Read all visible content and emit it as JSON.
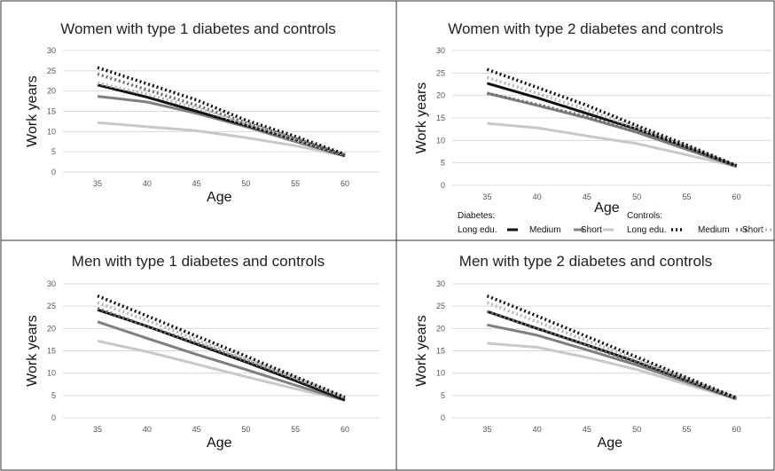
{
  "chart_data": [
    {
      "type": "line",
      "title": "Women with type 1 diabetes and controls",
      "xlabel": "Age",
      "ylabel": "Work years",
      "x": [
        35,
        40,
        45,
        50,
        55,
        60
      ],
      "ylim": [
        0,
        30
      ],
      "yticks": [
        0,
        5,
        10,
        15,
        20,
        25,
        30
      ],
      "xticks": [
        35,
        40,
        45,
        50,
        55,
        60
      ],
      "grid": "horizontal",
      "series": [
        {
          "group": "Diabetes",
          "edu": "Long edu.",
          "values": [
            21.5,
            18.5,
            15.0,
            11.5,
            8.0,
            4.0
          ]
        },
        {
          "group": "Diabetes",
          "edu": "Medium",
          "values": [
            18.7,
            17.3,
            14.5,
            11.2,
            7.5,
            4.0
          ]
        },
        {
          "group": "Diabetes",
          "edu": "Short",
          "values": [
            12.2,
            11.2,
            10.2,
            8.5,
            6.5,
            4.0
          ]
        },
        {
          "group": "Controls",
          "edu": "Long edu.",
          "values": [
            25.8,
            21.8,
            17.8,
            12.8,
            8.8,
            4.4
          ]
        },
        {
          "group": "Controls",
          "edu": "Medium",
          "values": [
            24.2,
            20.3,
            16.5,
            12.2,
            8.3,
            4.2
          ]
        },
        {
          "group": "Controls",
          "edu": "Short",
          "values": [
            22.0,
            19.2,
            15.8,
            11.8,
            8.0,
            4.2
          ]
        }
      ]
    },
    {
      "type": "line",
      "title": "Women with type 2 diabetes and controls",
      "xlabel": "Age",
      "ylabel": "Work years",
      "x": [
        35,
        40,
        45,
        50,
        55,
        60
      ],
      "ylim": [
        0,
        30
      ],
      "yticks": [
        0,
        5,
        10,
        15,
        20,
        25,
        30
      ],
      "xticks": [
        35,
        40,
        45,
        50,
        55,
        60
      ],
      "grid": "horizontal",
      "series": [
        {
          "group": "Diabetes",
          "edu": "Long edu.",
          "values": [
            22.7,
            19.5,
            16.0,
            12.5,
            8.5,
            4.3
          ]
        },
        {
          "group": "Diabetes",
          "edu": "Medium",
          "values": [
            20.5,
            17.8,
            15.0,
            11.8,
            8.0,
            4.2
          ]
        },
        {
          "group": "Diabetes",
          "edu": "Short",
          "values": [
            13.8,
            12.8,
            11.0,
            9.3,
            6.8,
            4.2
          ]
        },
        {
          "group": "Controls",
          "edu": "Long edu.",
          "values": [
            25.8,
            21.8,
            17.8,
            13.3,
            9.0,
            4.4
          ]
        },
        {
          "group": "Controls",
          "edu": "Medium",
          "values": [
            20.5,
            18.0,
            15.3,
            12.0,
            8.2,
            4.3
          ]
        },
        {
          "group": "Controls",
          "edu": "Short",
          "values": [
            24.0,
            20.5,
            16.8,
            12.8,
            8.8,
            4.4
          ]
        }
      ],
      "legend": {
        "placement": "bottom",
        "diabetes_title": "Diabetes:",
        "controls_title": "Controls:",
        "diabetes_items": [
          "Long edu.",
          "Medium",
          "Short"
        ],
        "controls_items": [
          "Long edu.",
          "Medium",
          "Short"
        ]
      }
    },
    {
      "type": "line",
      "title": "Men with type 1 diabetes and controls",
      "xlabel": "Age",
      "ylabel": "Work years",
      "x": [
        35,
        40,
        45,
        50,
        55,
        60
      ],
      "ylim": [
        0,
        30
      ],
      "yticks": [
        0,
        5,
        10,
        15,
        20,
        25,
        30
      ],
      "xticks": [
        35,
        40,
        45,
        50,
        55,
        60
      ],
      "grid": "horizontal",
      "series": [
        {
          "group": "Diabetes",
          "edu": "Long edu.",
          "values": [
            24.2,
            20.5,
            16.5,
            12.5,
            8.3,
            4.0
          ]
        },
        {
          "group": "Diabetes",
          "edu": "Medium",
          "values": [
            21.5,
            17.8,
            14.2,
            10.8,
            7.3,
            3.9
          ]
        },
        {
          "group": "Diabetes",
          "edu": "Short",
          "values": [
            17.2,
            14.8,
            12.0,
            9.2,
            6.5,
            4.0
          ]
        },
        {
          "group": "Controls",
          "edu": "Long edu.",
          "values": [
            27.3,
            22.8,
            18.3,
            13.8,
            9.2,
            4.6
          ]
        },
        {
          "group": "Controls",
          "edu": "Medium",
          "values": [
            24.5,
            20.5,
            16.8,
            12.8,
            8.7,
            4.5
          ]
        },
        {
          "group": "Controls",
          "edu": "Short",
          "values": [
            25.8,
            21.8,
            17.5,
            13.2,
            9.0,
            4.5
          ]
        }
      ]
    },
    {
      "type": "line",
      "title": "Men with type 2 diabetes and controls",
      "xlabel": "Age",
      "ylabel": "Work years",
      "x": [
        35,
        40,
        45,
        50,
        55,
        60
      ],
      "ylim": [
        0,
        30
      ],
      "yticks": [
        0,
        5,
        10,
        15,
        20,
        25,
        30
      ],
      "xticks": [
        35,
        40,
        45,
        50,
        55,
        60
      ],
      "grid": "horizontal",
      "series": [
        {
          "group": "Diabetes",
          "edu": "Long edu.",
          "values": [
            23.8,
            20.0,
            16.3,
            12.5,
            8.4,
            4.3
          ]
        },
        {
          "group": "Diabetes",
          "edu": "Medium",
          "values": [
            20.8,
            18.5,
            15.2,
            11.8,
            8.0,
            4.2
          ]
        },
        {
          "group": "Diabetes",
          "edu": "Short",
          "values": [
            16.7,
            15.8,
            13.5,
            10.8,
            7.5,
            4.2
          ]
        },
        {
          "group": "Controls",
          "edu": "Long edu.",
          "values": [
            27.3,
            22.8,
            18.2,
            13.6,
            9.0,
            4.5
          ]
        },
        {
          "group": "Controls",
          "edu": "Medium",
          "values": [
            23.8,
            20.0,
            16.2,
            12.3,
            8.4,
            4.4
          ]
        },
        {
          "group": "Controls",
          "edu": "Short",
          "values": [
            25.8,
            21.5,
            17.3,
            13.0,
            8.8,
            4.4
          ]
        }
      ]
    }
  ],
  "styles": {
    "Diabetes|Long edu.": {
      "color": "#111111",
      "dash": "solid"
    },
    "Diabetes|Medium": {
      "color": "#7f7f7f",
      "dash": "solid"
    },
    "Diabetes|Short": {
      "color": "#c8c8c8",
      "dash": "solid"
    },
    "Controls|Long edu.": {
      "color": "#111111",
      "dash": "dotted"
    },
    "Controls|Medium": {
      "color": "#6e6e6e",
      "dash": "dotted"
    },
    "Controls|Short": {
      "color": "#b8b8b8",
      "dash": "dotted"
    }
  },
  "colors": {
    "gridline": "#d9d9d9",
    "panel_border": "#333333",
    "text": "#222222"
  }
}
